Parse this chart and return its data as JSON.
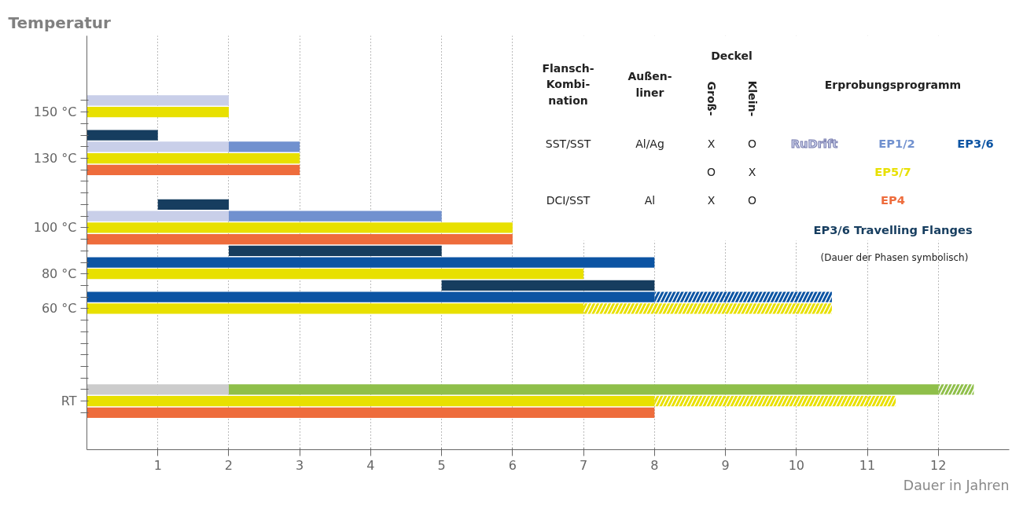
{
  "chart_data": {
    "type": "bar",
    "orientation": "horizontal",
    "ylabel": "Temperatur",
    "xlabel": "Dauer in Jahren",
    "categories": [
      null,
      "150 °C",
      null,
      null,
      null,
      "130 °C",
      null,
      null,
      null,
      null,
      null,
      "100 °C",
      null,
      null,
      null,
      "80 °C",
      null,
      null,
      "60 °C",
      null,
      null,
      null,
      null,
      null,
      null,
      null,
      "RT",
      null
    ],
    "xlim": [
      0,
      13
    ],
    "xticks": [
      1,
      2,
      3,
      4,
      5,
      6,
      7,
      8,
      9,
      10,
      11,
      12
    ],
    "grid": "x",
    "series": [
      {
        "name": "RuDrift",
        "color": "#c9cfe9",
        "values": [
          2,
          null,
          null,
          null,
          2,
          null,
          null,
          null,
          null,
          null,
          2,
          null,
          null,
          null,
          null,
          null,
          null,
          null,
          null,
          null,
          null,
          null,
          null,
          null,
          null,
          null,
          null,
          null
        ],
        "base": [
          0,
          null,
          null,
          null,
          0,
          null,
          null,
          null,
          null,
          null,
          0,
          null,
          null,
          null,
          null,
          null,
          null,
          null,
          null,
          null,
          null,
          null,
          null,
          null,
          null,
          null,
          null,
          null
        ]
      },
      {
        "name": "EP1/2",
        "color": "#7191cf",
        "values": [
          null,
          null,
          null,
          null,
          1,
          null,
          null,
          null,
          null,
          null,
          3,
          null,
          null,
          null,
          null,
          null,
          null,
          null,
          null,
          null,
          null,
          null,
          null,
          null,
          null,
          null,
          null,
          null
        ],
        "base": [
          null,
          null,
          null,
          null,
          2,
          null,
          null,
          null,
          null,
          null,
          2,
          null,
          null,
          null,
          null,
          null,
          null,
          null,
          null,
          null,
          null,
          null,
          null,
          null,
          null,
          null,
          null,
          null
        ]
      },
      {
        "name": "EP3/6",
        "color": "#0c54a3",
        "values": [
          null,
          null,
          null,
          null,
          null,
          null,
          null,
          null,
          null,
          null,
          null,
          null,
          null,
          null,
          8,
          null,
          null,
          8,
          null,
          null,
          null,
          null,
          null,
          null,
          null,
          null,
          null,
          null
        ],
        "base": [
          null,
          null,
          null,
          null,
          null,
          null,
          null,
          null,
          null,
          null,
          null,
          null,
          null,
          null,
          0,
          null,
          null,
          0,
          null,
          null,
          null,
          null,
          null,
          null,
          null,
          null,
          null,
          null
        ]
      },
      {
        "color": "#0c54a3",
        "line_style": "dashed",
        "values": [
          null,
          null,
          null,
          null,
          null,
          null,
          null,
          null,
          null,
          null,
          null,
          null,
          null,
          null,
          null,
          null,
          null,
          2.5,
          null,
          null,
          null,
          null,
          null,
          null,
          null,
          null,
          null,
          null
        ],
        "base": [
          null,
          null,
          null,
          null,
          null,
          null,
          null,
          null,
          null,
          null,
          null,
          null,
          null,
          null,
          null,
          null,
          null,
          8,
          null,
          null,
          null,
          null,
          null,
          null,
          null,
          null,
          null,
          null
        ]
      },
      {
        "name": "EP5/7",
        "color": "#e8e000",
        "values": [
          null,
          2,
          null,
          null,
          null,
          3,
          null,
          null,
          null,
          null,
          null,
          6,
          null,
          null,
          null,
          7,
          null,
          null,
          7,
          null,
          null,
          null,
          null,
          null,
          null,
          null,
          8,
          null
        ],
        "base": [
          null,
          0,
          null,
          null,
          null,
          0,
          null,
          null,
          null,
          null,
          null,
          0,
          null,
          null,
          null,
          0,
          null,
          null,
          0,
          null,
          null,
          null,
          null,
          null,
          null,
          null,
          0,
          null
        ]
      },
      {
        "color": "#e8e000",
        "line_style": "dashed",
        "values": [
          null,
          null,
          null,
          null,
          null,
          null,
          null,
          null,
          null,
          null,
          null,
          null,
          null,
          null,
          null,
          null,
          null,
          null,
          3.5,
          null,
          null,
          null,
          null,
          null,
          null,
          null,
          3.4,
          null
        ],
        "base": [
          null,
          null,
          null,
          null,
          null,
          null,
          null,
          null,
          null,
          null,
          null,
          null,
          null,
          null,
          null,
          null,
          null,
          null,
          7,
          null,
          null,
          null,
          null,
          null,
          null,
          null,
          8,
          null
        ]
      },
      {
        "name": "EP4",
        "color": "#ee6c3c",
        "values": [
          null,
          null,
          null,
          null,
          null,
          null,
          3,
          null,
          null,
          null,
          null,
          null,
          6,
          null,
          null,
          null,
          null,
          null,
          null,
          null,
          null,
          null,
          null,
          null,
          null,
          null,
          null,
          8
        ],
        "base": [
          null,
          null,
          null,
          null,
          null,
          null,
          0,
          null,
          null,
          null,
          null,
          null,
          0,
          null,
          null,
          null,
          null,
          null,
          null,
          null,
          null,
          null,
          null,
          null,
          null,
          null,
          null,
          0
        ]
      },
      {
        "color": "#cccccc",
        "values": [
          null,
          null,
          null,
          null,
          null,
          null,
          null,
          null,
          null,
          null,
          null,
          null,
          null,
          null,
          null,
          null,
          null,
          null,
          null,
          null,
          null,
          null,
          null,
          null,
          null,
          2,
          null,
          null
        ],
        "base": [
          null,
          null,
          null,
          null,
          null,
          null,
          null,
          null,
          null,
          null,
          null,
          null,
          null,
          null,
          null,
          null,
          null,
          null,
          null,
          null,
          null,
          null,
          null,
          null,
          null,
          0,
          null,
          null
        ]
      },
      {
        "color": "#8fbf4a",
        "values": [
          null,
          null,
          null,
          null,
          null,
          null,
          null,
          null,
          null,
          null,
          null,
          null,
          null,
          null,
          null,
          null,
          null,
          null,
          null,
          null,
          null,
          null,
          null,
          null,
          null,
          10,
          null,
          null
        ],
        "base": [
          null,
          null,
          null,
          null,
          null,
          null,
          null,
          null,
          null,
          null,
          null,
          null,
          null,
          null,
          null,
          null,
          null,
          null,
          null,
          null,
          null,
          null,
          null,
          null,
          null,
          2,
          null,
          null
        ]
      },
      {
        "color": "#8fbf4a",
        "line_style": "dashed",
        "values": [
          null,
          null,
          null,
          null,
          null,
          null,
          null,
          null,
          null,
          null,
          null,
          null,
          null,
          null,
          null,
          null,
          null,
          null,
          null,
          null,
          null,
          null,
          null,
          null,
          null,
          0.5,
          null,
          null
        ],
        "base": [
          null,
          null,
          null,
          null,
          null,
          null,
          null,
          null,
          null,
          null,
          null,
          null,
          null,
          null,
          null,
          null,
          null,
          null,
          null,
          null,
          null,
          null,
          null,
          null,
          null,
          12,
          null,
          null
        ]
      },
      {
        "name": "EP3/6 Travelling Flanges",
        "color": "#163d5f",
        "values": [
          null,
          null,
          null,
          1,
          null,
          null,
          null,
          null,
          null,
          1,
          null,
          null,
          null,
          3,
          null,
          null,
          3,
          null,
          null,
          null,
          null,
          null,
          null,
          null,
          null,
          null,
          null,
          null
        ],
        "base": [
          null,
          null,
          null,
          0,
          null,
          null,
          null,
          null,
          null,
          1,
          null,
          null,
          null,
          2,
          null,
          null,
          5,
          null,
          null,
          null,
          null,
          null,
          null,
          null,
          null,
          null,
          null,
          null
        ]
      }
    ],
    "annotations": [
      "Flansch-\nKombi-\nnation",
      "Außen-\nliner",
      "Deckel",
      "Groß-",
      "Klein-",
      "Erprobungsprogramm",
      "SST/SST",
      "Al/Ag",
      "X",
      "O",
      "O",
      "X",
      "DCI/SST",
      "Al",
      "X",
      "O",
      "(Dauer der Phasen symbolisch)"
    ]
  }
}
